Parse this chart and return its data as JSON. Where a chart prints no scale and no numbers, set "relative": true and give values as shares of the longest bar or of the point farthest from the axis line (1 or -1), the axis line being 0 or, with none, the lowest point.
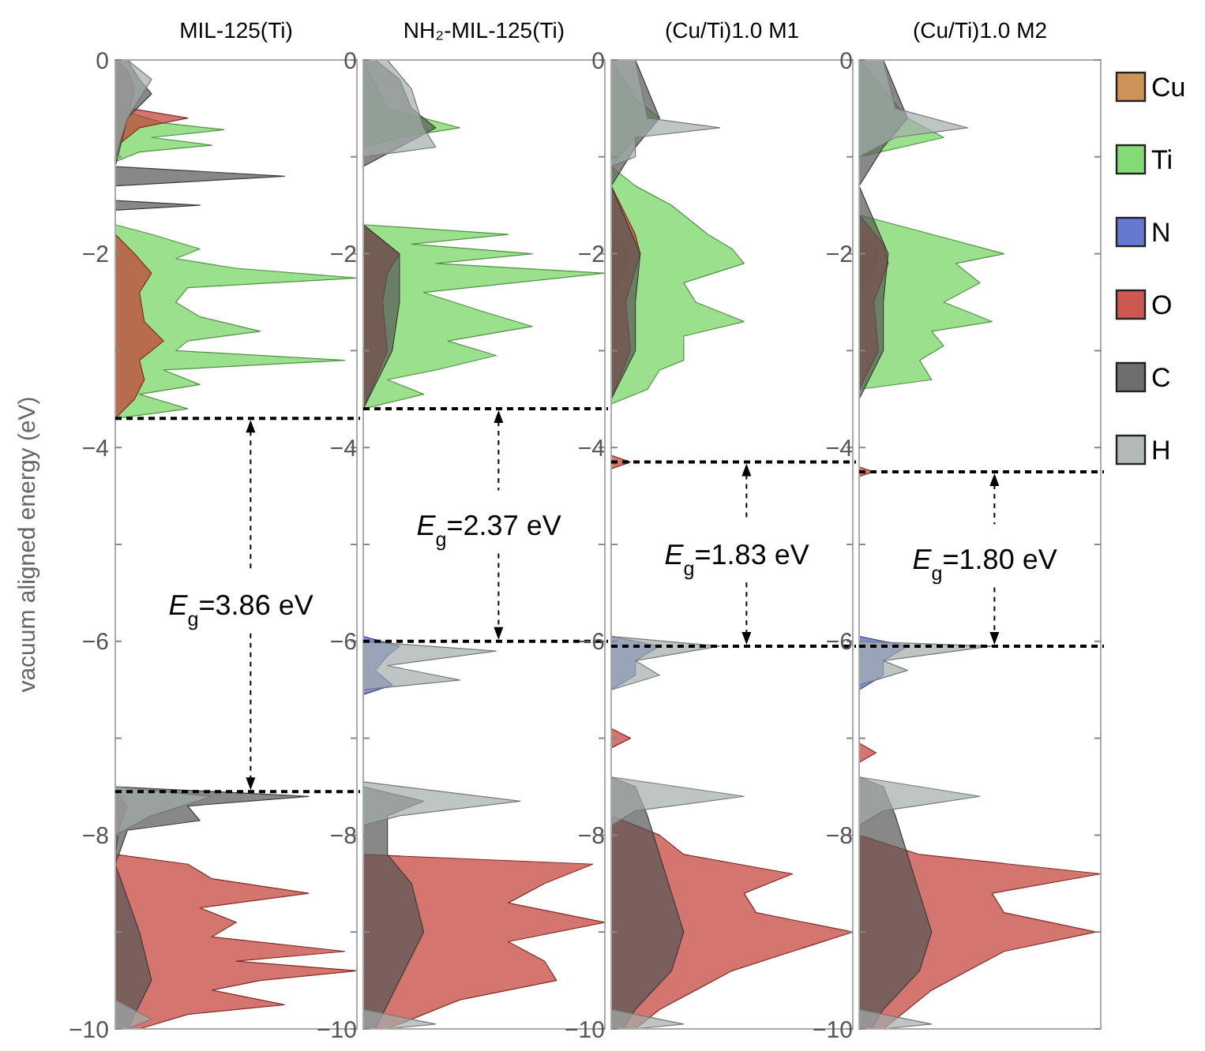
{
  "chart_data": [
    {
      "type": "area",
      "orientation": "horizontal",
      "relative": true,
      "title": "MIL-125(Ti)",
      "ylabel": "vacuum aligned energy (eV)",
      "ylim": [
        -10,
        0
      ],
      "yticks": [
        0,
        {
          "value": -1,
          "label": null
        },
        -2,
        {
          "value": -3,
          "label": null
        },
        -4,
        {
          "value": -5,
          "label": null
        },
        -6,
        {
          "value": -7,
          "label": null
        },
        -8,
        {
          "value": -9,
          "label": null
        },
        -10
      ],
      "tick_labels": "y",
      "legend": false,
      "ref_lines": [
        {
          "axis": "y",
          "value": -3.7,
          "color": "#000000",
          "line_style": "dashed"
        },
        {
          "axis": "y",
          "value": -7.55,
          "color": "#000000",
          "line_style": "dashed"
        }
      ],
      "annotations": [
        "E$_{g}$=3.86 eV"
      ],
      "series": [
        {
          "color": "#6fd35c",
          "x": [
            0,
            -0.5,
            -0.65,
            -0.72,
            -0.8,
            -0.88,
            -0.95,
            -1.05,
            -1.7,
            -1.8,
            -1.95,
            -2.05,
            -2.15,
            -2.25,
            -2.35,
            -2.5,
            -2.65,
            -2.8,
            -2.9,
            -3.0,
            -3.1,
            -3.2,
            -3.35,
            -3.45,
            -3.6,
            -3.7
          ],
          "values": [
            0,
            0,
            0.2,
            0.45,
            0.15,
            0.4,
            0.1,
            0,
            0,
            0.15,
            0.35,
            0.25,
            0.5,
            1.0,
            0.3,
            0.25,
            0.35,
            0.6,
            0.3,
            0.25,
            0.95,
            0.2,
            0.35,
            0.1,
            0.3,
            0
          ]
        },
        {
          "color": "#c23b32",
          "x": [
            0,
            -0.1,
            -0.3,
            -0.5,
            -0.6,
            -0.7,
            -0.9,
            -1.8,
            -2.0,
            -2.2,
            -2.4,
            -2.7,
            -2.9,
            -3.1,
            -3.3,
            -3.5,
            -3.7,
            -7.55,
            -7.7,
            -7.9,
            -8.2,
            -8.3,
            -8.45,
            -8.6,
            -8.75,
            -8.9,
            -9.05,
            -9.2,
            -9.3,
            -9.4,
            -9.5,
            -9.6,
            -9.75,
            -9.85,
            -10
          ],
          "values": [
            0,
            0.05,
            0.08,
            0.06,
            0.3,
            0.1,
            0,
            0,
            0.08,
            0.15,
            0.1,
            0.12,
            0.2,
            0.1,
            0.12,
            0.08,
            0,
            0,
            0.05,
            0.02,
            0,
            0.3,
            0.4,
            0.8,
            0.35,
            0.5,
            0.4,
            0.95,
            0.5,
            1.0,
            0.6,
            0.4,
            0.7,
            0.3,
            0.1
          ]
        },
        {
          "color": "#555555",
          "x": [
            0,
            -0.2,
            -0.35,
            -0.6,
            -1.1,
            -1.2,
            -1.3,
            -1.45,
            -1.5,
            -1.55,
            -7.5,
            -7.6,
            -7.7,
            -7.85,
            -7.95,
            -8.3,
            -9.0,
            -9.5,
            -10
          ],
          "values": [
            0.05,
            0.1,
            0.15,
            0.05,
            0,
            0.7,
            0,
            0,
            0.35,
            0,
            0,
            0.8,
            0.3,
            0.35,
            0.05,
            0,
            0.1,
            0.15,
            0.05
          ]
        },
        {
          "color": "#a4adab",
          "x": [
            0,
            -0.2,
            -0.4,
            -0.6,
            -1.0,
            -7.5,
            -7.6,
            -7.8,
            -8.0,
            -9.7,
            -9.9,
            -10
          ],
          "values": [
            0.05,
            0.15,
            0.1,
            0.05,
            0,
            0,
            0.4,
            0.15,
            0,
            0,
            0.15,
            0.05
          ]
        }
      ]
    },
    {
      "type": "area",
      "orientation": "horizontal",
      "relative": true,
      "title": "NH₂-MIL-125(Ti)",
      "ylim": [
        -10,
        0
      ],
      "yticks": [
        0,
        {
          "value": -1,
          "label": null
        },
        -2,
        {
          "value": -3,
          "label": null
        },
        -4,
        {
          "value": -5,
          "label": null
        },
        -6,
        {
          "value": -7,
          "label": null
        },
        -8,
        {
          "value": -9,
          "label": null
        },
        -10
      ],
      "tick_labels": "y",
      "legend": false,
      "ref_lines": [
        {
          "axis": "y",
          "value": -3.6,
          "color": "#000000",
          "line_style": "dashed"
        },
        {
          "axis": "y",
          "value": -6.0,
          "color": "#000000",
          "line_style": "dashed"
        }
      ],
      "annotations": [
        "E$_{g}$=2.37 eV"
      ],
      "series": [
        {
          "color": "#6fd35c",
          "x": [
            0,
            -0.5,
            -0.7,
            -0.8,
            -0.9,
            -1.7,
            -1.8,
            -1.9,
            -2.0,
            -2.1,
            -2.2,
            -2.4,
            -2.6,
            -2.75,
            -2.9,
            -3.05,
            -3.2,
            -3.3,
            -3.45,
            -3.6
          ],
          "values": [
            0,
            0.1,
            0.4,
            0.15,
            0,
            0,
            0.6,
            0.2,
            0.7,
            0.3,
            1.0,
            0.25,
            0.5,
            0.7,
            0.35,
            0.55,
            0.3,
            0.1,
            0.25,
            0
          ]
        },
        {
          "color": "#4a62c9",
          "x": [
            -5.95,
            -6.05,
            -6.15,
            -6.3,
            -6.45,
            -6.55
          ],
          "values": [
            0,
            0.15,
            0.1,
            0.05,
            0.12,
            0
          ]
        },
        {
          "color": "#c23b32",
          "x": [
            0,
            -1.7,
            -2.0,
            -2.2,
            -2.5,
            -3.0,
            -3.6,
            -8.2,
            -8.3,
            -8.5,
            -8.7,
            -8.9,
            -9.1,
            -9.3,
            -9.5,
            -9.7,
            -10
          ],
          "values": [
            0,
            0,
            0.15,
            0.1,
            0.08,
            0.1,
            0,
            0,
            0.95,
            0.75,
            0.6,
            1.0,
            0.6,
            0.75,
            0.8,
            0.4,
            0.1
          ]
        },
        {
          "color": "#555555",
          "x": [
            0,
            -0.2,
            -0.5,
            -0.7,
            -0.9,
            -1.1,
            -1.7,
            -2.0,
            -2.5,
            -3.0,
            -3.6,
            -7.5,
            -7.65,
            -7.8,
            -8.2,
            -8.5,
            -9.0,
            -9.5,
            -10
          ],
          "values": [
            0.05,
            0.15,
            0.2,
            0.3,
            0.15,
            0,
            0,
            0.15,
            0.15,
            0.12,
            0,
            0,
            0.25,
            0.1,
            0.1,
            0.2,
            0.25,
            0.15,
            0.05
          ]
        },
        {
          "color": "#a4adab",
          "x": [
            0,
            -0.3,
            -0.7,
            -0.9,
            -1.0,
            -6.0,
            -6.1,
            -6.25,
            -6.4,
            -6.5,
            -7.45,
            -7.65,
            -7.8,
            -7.9,
            -9.8,
            -9.95,
            -10
          ],
          "values": [
            0.1,
            0.2,
            0.25,
            0.3,
            0,
            0,
            0.55,
            0.1,
            0.4,
            0,
            0,
            0.65,
            0.15,
            0,
            0,
            0.3,
            0.1
          ]
        }
      ]
    },
    {
      "type": "area",
      "orientation": "horizontal",
      "relative": true,
      "title": "(Cu/Ti)1.0 M1",
      "ylim": [
        -10,
        0
      ],
      "yticks": [
        0,
        {
          "value": -1,
          "label": null
        },
        -2,
        {
          "value": -3,
          "label": null
        },
        -4,
        {
          "value": -5,
          "label": null
        },
        -6,
        {
          "value": -7,
          "label": null
        },
        -8,
        {
          "value": -9,
          "label": null
        },
        -10
      ],
      "tick_labels": "y",
      "legend": false,
      "ref_lines": [
        {
          "axis": "y",
          "value": -4.15,
          "color": "#000000",
          "line_style": "dashed"
        },
        {
          "axis": "y",
          "value": -6.05,
          "color": "#000000",
          "line_style": "dashed"
        }
      ],
      "annotations": [
        "E$_{g}$=1.83 eV"
      ],
      "series": [
        {
          "color": "#c47f3a",
          "x": [
            -1.8,
            -2.0,
            -2.2,
            -2.4
          ],
          "values": [
            0,
            0.08,
            0.05,
            0
          ]
        },
        {
          "color": "#6fd35c",
          "x": [
            0,
            -0.4,
            -0.6,
            -0.8,
            -1.1,
            -1.3,
            -1.5,
            -1.8,
            -1.95,
            -2.1,
            -2.3,
            -2.5,
            -2.7,
            -2.85,
            -3.0,
            -3.1,
            -3.2,
            -3.4,
            -3.55
          ],
          "values": [
            0,
            0.1,
            0.2,
            0.1,
            0,
            0.1,
            0.25,
            0.4,
            0.5,
            0.55,
            0.3,
            0.35,
            0.55,
            0.3,
            0.3,
            0.3,
            0.2,
            0.15,
            0
          ]
        },
        {
          "color": "#4a62c9",
          "x": [
            -5.95,
            -6.05,
            -6.2,
            -6.35,
            -6.5
          ],
          "values": [
            0,
            0.2,
            0.1,
            0.1,
            0
          ]
        },
        {
          "color": "#c23b32",
          "x": [
            0,
            -1.3,
            -1.8,
            -2.0,
            -2.5,
            -3.0,
            -3.5,
            -4.08,
            -4.15,
            -4.22,
            -6.9,
            -7.0,
            -7.1,
            -7.8,
            -8.0,
            -8.2,
            -8.4,
            -8.6,
            -8.8,
            -9.0,
            -9.2,
            -9.4,
            -9.6,
            -9.8,
            -10
          ],
          "values": [
            0,
            0,
            0.1,
            0.12,
            0.06,
            0.08,
            0,
            0,
            0.08,
            0,
            0,
            0.08,
            0,
            0,
            0.2,
            0.3,
            0.75,
            0.55,
            0.6,
            1.0,
            0.75,
            0.5,
            0.35,
            0.2,
            0.1
          ]
        },
        {
          "color": "#555555",
          "x": [
            0,
            -0.3,
            -0.6,
            -0.9,
            -1.1,
            -1.3,
            -2.0,
            -2.5,
            -3.0,
            -3.5,
            -7.4,
            -7.5,
            -7.8,
            -8.2,
            -8.6,
            -9.0,
            -9.4,
            -9.8,
            -10
          ],
          "values": [
            0.1,
            0.15,
            0.2,
            0.1,
            0.05,
            0,
            0.12,
            0.1,
            0.1,
            0,
            0,
            0.1,
            0.15,
            0.2,
            0.25,
            0.3,
            0.25,
            0.1,
            0.05
          ]
        },
        {
          "color": "#a4adab",
          "x": [
            0,
            -0.6,
            -0.7,
            -0.8,
            -1.0,
            -1.1,
            -5.95,
            -6.05,
            -6.2,
            -6.35,
            -6.5,
            -7.4,
            -7.6,
            -7.75,
            -7.9,
            -9.8,
            -9.95,
            -10
          ],
          "values": [
            0.1,
            0.15,
            0.45,
            0.1,
            0.1,
            0,
            0,
            0.45,
            0.1,
            0.2,
            0,
            0,
            0.55,
            0.1,
            0,
            0,
            0.3,
            0.1
          ]
        }
      ]
    },
    {
      "type": "area",
      "orientation": "horizontal",
      "relative": true,
      "title": "(Cu/Ti)1.0 M2",
      "ylim": [
        -10,
        0
      ],
      "yticks": [
        0,
        {
          "value": -1,
          "label": null
        },
        -2,
        {
          "value": -3,
          "label": null
        },
        -4,
        {
          "value": -5,
          "label": null
        },
        -6,
        {
          "value": -7,
          "label": null
        },
        -8,
        {
          "value": -9,
          "label": null
        },
        -10
      ],
      "tick_labels": "y",
      "legend": "right",
      "ref_lines": [
        {
          "axis": "y",
          "value": -4.25,
          "color": "#000000",
          "line_style": "dashed"
        },
        {
          "axis": "y",
          "value": -6.05,
          "color": "#000000",
          "line_style": "dashed"
        }
      ],
      "annotations": [
        "E$_{g}$=1.80 eV"
      ],
      "series": [
        {
          "name": "Cu",
          "color": "#c47f3a",
          "x": [
            -1.8,
            -2.0,
            -2.2,
            -2.4
          ],
          "values": [
            0,
            0.08,
            0.05,
            0
          ]
        },
        {
          "name": "Ti",
          "color": "#6fd35c",
          "x": [
            0,
            -0.6,
            -0.8,
            -1.0,
            -1.6,
            -1.8,
            -2.0,
            -2.1,
            -2.3,
            -2.5,
            -2.7,
            -2.8,
            -2.95,
            -3.1,
            -3.3,
            -3.4
          ],
          "values": [
            0,
            0.2,
            0.35,
            0,
            0,
            0.3,
            0.6,
            0.4,
            0.5,
            0.35,
            0.55,
            0.3,
            0.35,
            0.25,
            0.3,
            0
          ]
        },
        {
          "name": "N",
          "color": "#4a62c9",
          "x": [
            -5.95,
            -6.05,
            -6.2,
            -6.35,
            -6.5
          ],
          "values": [
            0,
            0.2,
            0.1,
            0.1,
            0
          ]
        },
        {
          "name": "O",
          "color": "#c23b32",
          "x": [
            0,
            -1.6,
            -1.9,
            -2.1,
            -2.5,
            -3.0,
            -3.4,
            -4.2,
            -4.25,
            -4.3,
            -7.05,
            -7.15,
            -7.25,
            -8.0,
            -8.2,
            -8.4,
            -8.6,
            -8.8,
            -9.0,
            -9.2,
            -9.4,
            -9.6,
            -9.8,
            -10
          ],
          "values": [
            0,
            0,
            0.1,
            0.12,
            0.06,
            0.08,
            0,
            0,
            0.06,
            0,
            0,
            0.07,
            0,
            0,
            0.25,
            1.0,
            0.55,
            0.6,
            0.98,
            0.6,
            0.45,
            0.3,
            0.2,
            0.1
          ]
        },
        {
          "name": "C",
          "color": "#555555",
          "x": [
            0,
            -0.3,
            -0.6,
            -0.9,
            -1.1,
            -1.3,
            -2.0,
            -2.5,
            -3.0,
            -3.5,
            -7.4,
            -7.5,
            -7.8,
            -8.2,
            -8.6,
            -9.0,
            -9.4,
            -9.8,
            -10
          ],
          "values": [
            0.1,
            0.15,
            0.2,
            0.1,
            0.05,
            0,
            0.12,
            0.1,
            0.1,
            0,
            0,
            0.1,
            0.15,
            0.2,
            0.25,
            0.3,
            0.25,
            0.1,
            0.05
          ]
        },
        {
          "name": "H",
          "color": "#a4adab",
          "x": [
            0,
            -0.5,
            -0.7,
            -0.8,
            -1.0,
            -6.0,
            -6.05,
            -6.2,
            -6.3,
            -6.45,
            -7.4,
            -7.6,
            -7.75,
            -7.9,
            -9.8,
            -9.95,
            -10
          ],
          "values": [
            0.1,
            0.15,
            0.45,
            0.15,
            0,
            0,
            0.55,
            0.1,
            0.2,
            0,
            0,
            0.5,
            0.1,
            0,
            0,
            0.3,
            0.1
          ]
        }
      ]
    }
  ]
}
